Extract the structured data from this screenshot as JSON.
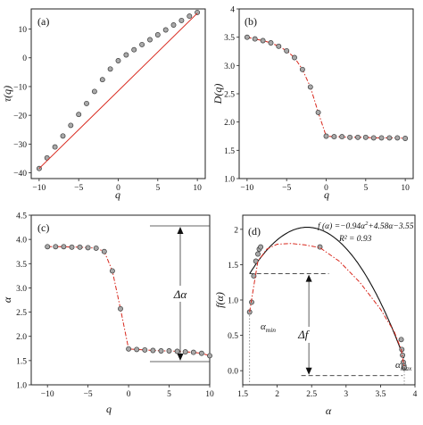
{
  "chart_data": [
    {
      "panel_label": "(a)",
      "type": "scatter",
      "xlabel": "q",
      "ylabel": "τ(q)",
      "xlim": [
        -11,
        11
      ],
      "ylim": [
        -42,
        17
      ],
      "xticks": [
        -10,
        -5,
        0,
        5,
        10
      ],
      "xtick_labels": [
        "−10",
        "−5",
        "0",
        "5",
        "10"
      ],
      "yticks": [
        -40,
        -30,
        -20,
        -10,
        0,
        10
      ],
      "ytick_labels": [
        "−40",
        "−30",
        "−20",
        "−10",
        "0",
        "10"
      ],
      "series": [
        {
          "kind": "points",
          "x": [
            -10,
            -9,
            -8,
            -7,
            -6,
            -5,
            -4,
            -3,
            -2,
            -1,
            0,
            1,
            2,
            3,
            4,
            5,
            6,
            7,
            8,
            9,
            10
          ],
          "y": [
            -38.5,
            -34.8,
            -31.0,
            -27.2,
            -23.5,
            -19.7,
            -15.9,
            -11.7,
            -7.6,
            -3.9,
            -1.0,
            1.0,
            2.8,
            4.6,
            6.3,
            8.0,
            9.7,
            11.4,
            13.0,
            14.5,
            15.8
          ]
        },
        {
          "kind": "line",
          "x": [
            -10,
            10
          ],
          "y": [
            -38.5,
            15.5
          ]
        }
      ]
    },
    {
      "panel_label": "(b)",
      "type": "line",
      "xlabel": "q",
      "ylabel": "D(q)",
      "xlim": [
        -11,
        11
      ],
      "ylim": [
        1,
        4
      ],
      "xticks": [
        -10,
        -5,
        0,
        5,
        10
      ],
      "xtick_labels": [
        "−10",
        "−5",
        "0",
        "5",
        "10"
      ],
      "yticks": [
        1.0,
        1.5,
        2.0,
        2.5,
        3.0,
        3.5,
        4.0
      ],
      "ytick_labels": [
        "1.0",
        "1.5",
        "2.0",
        "2.5",
        "3.0",
        "3.5",
        "4"
      ],
      "series": [
        {
          "kind": "points+dashline",
          "x": [
            -10,
            -9,
            -8,
            -7,
            -6,
            -5,
            -4,
            -3,
            -2,
            -1,
            0,
            1,
            2,
            3,
            4,
            5,
            6,
            7,
            8,
            9,
            10
          ],
          "y": [
            3.5,
            3.47,
            3.44,
            3.4,
            3.34,
            3.26,
            3.14,
            2.93,
            2.62,
            2.17,
            1.75,
            1.74,
            1.74,
            1.73,
            1.73,
            1.73,
            1.72,
            1.72,
            1.72,
            1.72,
            1.71
          ]
        }
      ]
    },
    {
      "panel_label": "(c)",
      "type": "line",
      "xlabel": "q",
      "ylabel": "α",
      "xlim": [
        -12,
        10
      ],
      "ylim": [
        1,
        4.5
      ],
      "xticks": [
        -10,
        -5,
        0,
        5,
        10
      ],
      "xtick_labels": [
        "−10",
        "−5",
        "0",
        "5",
        "10"
      ],
      "yticks": [
        1.0,
        1.5,
        2.0,
        2.5,
        3.0,
        3.5,
        4.0,
        4.5
      ],
      "ytick_labels": [
        "1.0",
        "1.5",
        "2.0",
        "2.5",
        "3.0",
        "3.5",
        "4.0",
        "4.5"
      ],
      "annotation": "Δα",
      "series": [
        {
          "kind": "points+dashline",
          "x": [
            -10,
            -9,
            -8,
            -7,
            -6,
            -5,
            -4,
            -3,
            -2,
            -1,
            0,
            1,
            2,
            3,
            4,
            5,
            6,
            7,
            8,
            9,
            10
          ],
          "y": [
            3.85,
            3.85,
            3.85,
            3.84,
            3.84,
            3.83,
            3.82,
            3.75,
            3.35,
            2.57,
            1.74,
            1.73,
            1.72,
            1.71,
            1.7,
            1.7,
            1.69,
            1.68,
            1.67,
            1.65,
            1.6
          ]
        }
      ]
    },
    {
      "panel_label": "(d)",
      "type": "line",
      "xlabel": "α",
      "ylabel": "f(α)",
      "xlim": [
        1.5,
        4.0
      ],
      "ylim": [
        -0.2,
        2.2
      ],
      "xticks": [
        1.5,
        2.0,
        2.5,
        3.0,
        3.5,
        4.0
      ],
      "xtick_labels": [
        "1.5",
        "2",
        "2.5",
        "3",
        "3.5",
        "4"
      ],
      "yticks": [
        0.0,
        0.5,
        1.0,
        1.5,
        2.0
      ],
      "ytick_labels": [
        "0.0",
        "0.5",
        "1.0",
        "1.5",
        "2"
      ],
      "equation_prefix": "f (α) =−0.94α",
      "equation_suffix": "+4.58α−3.55",
      "r2_text": "R² = 0.93",
      "alpha_min_label": "α",
      "alpha_min_sub": "min",
      "alpha_max_label": "α",
      "alpha_max_sub": "max",
      "delta_f_label": "Δf",
      "fit_coefficients": [
        -0.94,
        4.58,
        -3.55
      ],
      "series": [
        {
          "kind": "points",
          "x": [
            1.6,
            1.63,
            1.66,
            1.69,
            1.72,
            1.74,
            1.76,
            2.62,
            3.8,
            3.81,
            3.82,
            3.83,
            3.84,
            3.845
          ],
          "y": [
            0.83,
            0.97,
            1.34,
            1.55,
            1.65,
            1.72,
            1.75,
            1.75,
            0.44,
            0.3,
            0.22,
            0.12,
            0.07,
            0.04
          ]
        },
        {
          "kind": "dashline",
          "x": [
            1.6,
            1.66,
            1.72,
            1.85,
            2.0,
            2.2,
            2.4,
            2.62,
            2.9,
            3.2,
            3.5,
            3.7,
            3.8,
            3.845
          ],
          "y": [
            0.83,
            1.2,
            1.55,
            1.72,
            1.79,
            1.8,
            1.78,
            1.74,
            1.55,
            1.25,
            0.87,
            0.55,
            0.3,
            0.04
          ]
        }
      ]
    }
  ]
}
